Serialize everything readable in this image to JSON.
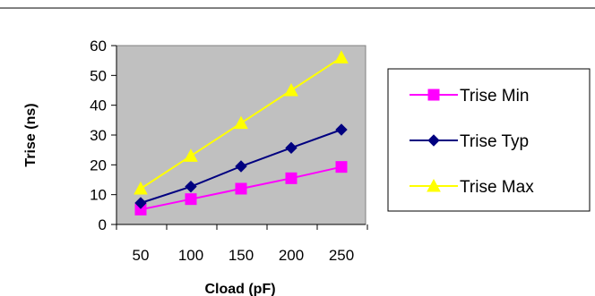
{
  "chart_data": {
    "type": "line",
    "title": "",
    "xlabel": "Cload (pF)",
    "ylabel": "Trise (ns)",
    "categories": [
      "50",
      "100",
      "150",
      "200",
      "250"
    ],
    "ylim": [
      0,
      60
    ],
    "yticks": [
      0,
      10,
      20,
      30,
      40,
      50,
      60
    ],
    "grid": false,
    "legend_position": "right",
    "plot_background": "#c0c0c0",
    "series": [
      {
        "name": "Trise Min",
        "values": [
          5,
          8.5,
          12,
          15.5,
          19.3
        ],
        "color": "#ff00ff",
        "marker": "square"
      },
      {
        "name": "Trise Typ",
        "values": [
          7.2,
          12.7,
          19.5,
          25.7,
          31.8
        ],
        "color": "#000080",
        "marker": "diamond"
      },
      {
        "name": "Trise Max",
        "values": [
          12,
          23,
          34,
          45,
          56
        ],
        "color": "#ffff00",
        "marker": "triangle"
      }
    ]
  }
}
